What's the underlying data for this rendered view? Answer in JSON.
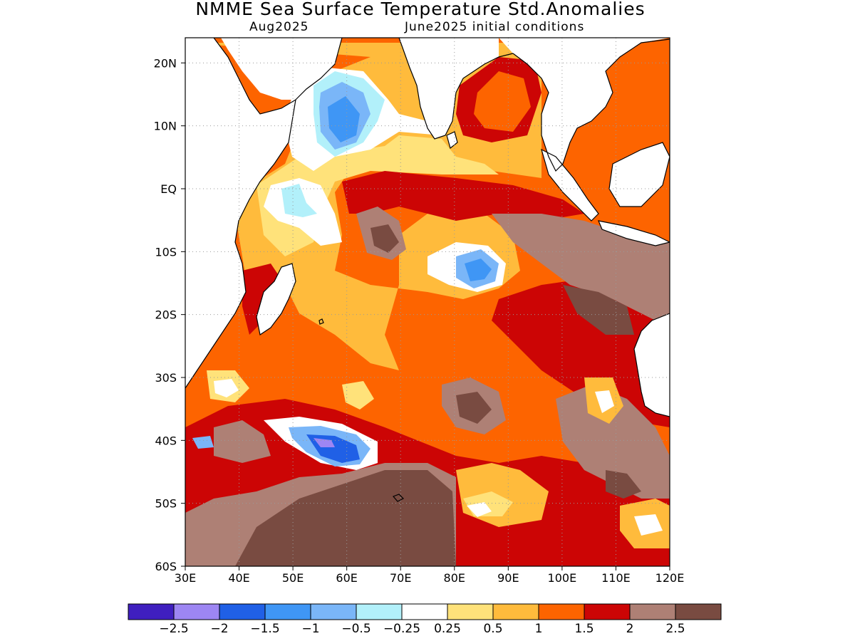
{
  "title": "NMME Sea Surface Temperature Std.Anomalies",
  "subtitle_left": "Aug2025",
  "subtitle_right": "June2025 initial conditions",
  "map": {
    "lon_range": [
      30,
      120
    ],
    "lat_range": [
      -60,
      24
    ],
    "lat_ticks": [
      {
        "value": 20,
        "label": "20N"
      },
      {
        "value": 10,
        "label": "10N"
      },
      {
        "value": 0,
        "label": "EQ"
      },
      {
        "value": -10,
        "label": "10S"
      },
      {
        "value": -20,
        "label": "20S"
      },
      {
        "value": -30,
        "label": "30S"
      },
      {
        "value": -40,
        "label": "40S"
      },
      {
        "value": -50,
        "label": "50S"
      },
      {
        "value": -60,
        "label": "60S"
      }
    ],
    "lon_ticks": [
      {
        "value": 30,
        "label": "30E"
      },
      {
        "value": 40,
        "label": "40E"
      },
      {
        "value": 50,
        "label": "50E"
      },
      {
        "value": 60,
        "label": "60E"
      },
      {
        "value": 70,
        "label": "70E"
      },
      {
        "value": 80,
        "label": "80E"
      },
      {
        "value": 90,
        "label": "90E"
      },
      {
        "value": 100,
        "label": "100E"
      },
      {
        "value": 110,
        "label": "110E"
      },
      {
        "value": 120,
        "label": "120E"
      }
    ],
    "gridlines": true
  },
  "colorbar": {
    "colors": [
      "#3f1fbf",
      "#9d86f3",
      "#2060e6",
      "#3f96f5",
      "#7ab6f8",
      "#b2f0fa",
      "#ffffff",
      "#ffe27a",
      "#ffbb3c",
      "#fd6400",
      "#cc0505",
      "#ae8075",
      "#794b41"
    ],
    "labels": [
      "−2.5",
      "−2",
      "−1.5",
      "−1",
      "−0.5",
      "−0.25",
      "0.25",
      "0.5",
      "1",
      "1.5",
      "2",
      "2.5"
    ]
  },
  "colors": {
    "land": "#ffffff",
    "coast": "#000000",
    "grid": "#9a9a9a"
  }
}
